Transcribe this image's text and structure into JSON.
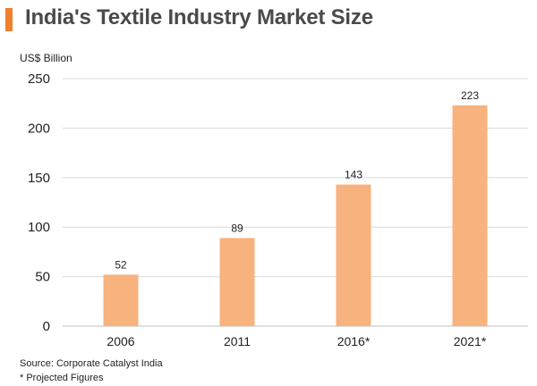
{
  "header": {
    "title": "India's Textile Industry Market Size",
    "accent_color": "#f07f2e"
  },
  "unit_label": "US$ Billion",
  "footnotes": {
    "source": "Source: Corporate Catalyst India",
    "projected": "* Projected Figures"
  },
  "chart_data": {
    "type": "bar",
    "title": "India's Textile Industry Market Size",
    "ylabel": "US$ Billion",
    "xlabel": "",
    "categories": [
      "2006",
      "2011",
      "2016*",
      "2021*"
    ],
    "values": [
      52,
      89,
      143,
      223
    ],
    "data_labels": [
      "52",
      "89",
      "143",
      "223"
    ],
    "ylim": [
      0,
      250
    ],
    "yticks": [
      0,
      50,
      100,
      150,
      200,
      250
    ],
    "grid": true,
    "legend": "none",
    "bar_color": "#f8b27d",
    "grid_color": "#d9d9d9"
  }
}
